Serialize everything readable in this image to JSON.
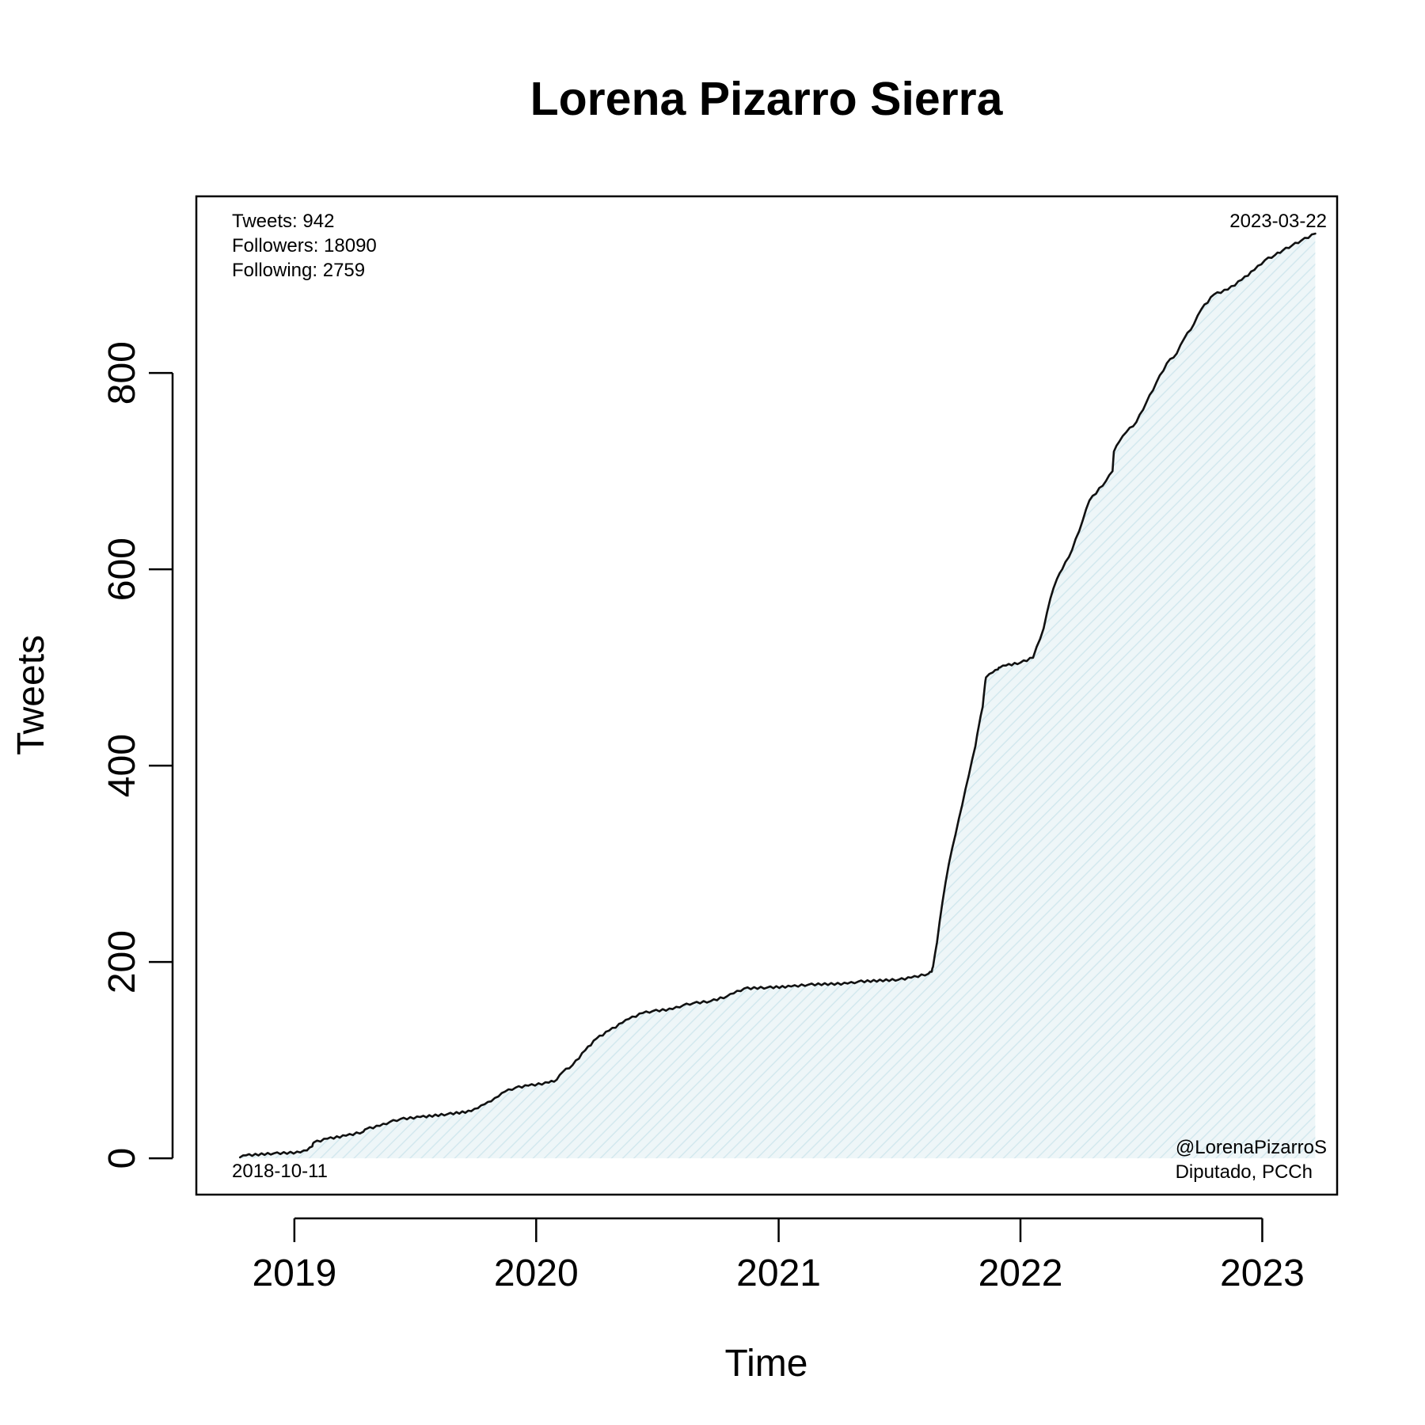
{
  "chart_data": {
    "type": "area",
    "title": "Lorena Pizarro Sierra",
    "xlabel": "Time",
    "ylabel": "Tweets",
    "x_ticks": [
      "2019",
      "2020",
      "2021",
      "2022",
      "2023"
    ],
    "y_ticks": [
      "0",
      "200",
      "400",
      "600",
      "800"
    ],
    "xlim": [
      "2018-08-06",
      "2023-04-24"
    ],
    "ylim": [
      -37,
      980
    ],
    "grid": false,
    "legend": "none",
    "line_color": "#111111",
    "fill_color": "#dfeef2",
    "stats": {
      "tweets": "Tweets: 942",
      "followers": "Followers: 18090",
      "following": "Following: 2759"
    },
    "start_label": "2018-10-11",
    "end_label": "2023-03-22",
    "handle": "@LorenaPizarroS",
    "role": "Diputado, PCCh",
    "series": [
      {
        "x": [
          "2018-10-11",
          "2018-10-20",
          "2018-12-01",
          "2019-01-10",
          "2019-01-20",
          "2019-01-28",
          "2019-01-30",
          "2019-02-20",
          "2019-03-20",
          "2019-04-15",
          "2019-04-20",
          "2019-05-10",
          "2019-05-25",
          "2019-06-10",
          "2019-07-10",
          "2019-08-20",
          "2019-09-25",
          "2019-10-05",
          "2019-10-15",
          "2019-10-25",
          "2019-11-05",
          "2019-11-15",
          "2019-12-01",
          "2019-12-20",
          "2020-01-20",
          "2020-02-01",
          "2020-02-10",
          "2020-02-25",
          "2020-03-15",
          "2020-04-01",
          "2020-04-20",
          "2020-05-10",
          "2020-05-20",
          "2020-06-10",
          "2020-06-25",
          "2020-07-25",
          "2020-08-10",
          "2020-08-25",
          "2020-09-20",
          "2020-10-15",
          "2020-10-25",
          "2020-11-10",
          "2020-12-15",
          "2021-01-20",
          "2021-02-15",
          "2021-04-15",
          "2021-05-01",
          "2021-07-01",
          "2021-07-20",
          "2021-08-15",
          "2021-08-20",
          "2021-08-22",
          "2021-08-28",
          "2021-09-05",
          "2021-09-15",
          "2021-09-25",
          "2021-10-05",
          "2021-10-15",
          "2021-10-25",
          "2021-10-30",
          "2021-11-05",
          "2021-11-08",
          "2021-11-10",
          "2021-11-20",
          "2021-11-28",
          "2021-12-01",
          "2021-12-10",
          "2022-01-01",
          "2022-01-20",
          "2022-02-05",
          "2022-02-15",
          "2022-02-25",
          "2022-03-05",
          "2022-03-20",
          "2022-04-05",
          "2022-04-15",
          "2022-05-10",
          "2022-05-20",
          "2022-05-22",
          "2022-05-30",
          "2022-06-10",
          "2022-06-25",
          "2022-07-10",
          "2022-07-25",
          "2022-08-10",
          "2022-08-25",
          "2022-09-05",
          "2022-09-20",
          "2022-10-01",
          "2022-10-20",
          "2022-11-10",
          "2022-12-01",
          "2022-12-20",
          "2023-01-05",
          "2023-01-20",
          "2023-02-01",
          "2023-02-15",
          "2023-03-01",
          "2023-03-22"
        ],
        "y": [
          1,
          3,
          5,
          6,
          8,
          12,
          16,
          20,
          23,
          27,
          30,
          33,
          37,
          40,
          42,
          45,
          48,
          51,
          55,
          58,
          63,
          68,
          72,
          74,
          77,
          80,
          88,
          95,
          110,
          122,
          130,
          138,
          142,
          148,
          150,
          152,
          156,
          158,
          160,
          165,
          168,
          173,
          174,
          175,
          177,
          178,
          180,
          182,
          184,
          188,
          190,
          195,
          220,
          260,
          300,
          330,
          360,
          390,
          420,
          440,
          460,
          480,
          490,
          495,
          498,
          500,
          502,
          505,
          510,
          540,
          570,
          590,
          600,
          620,
          650,
          670,
          690,
          700,
          720,
          730,
          740,
          750,
          770,
          790,
          810,
          820,
          835,
          850,
          865,
          880,
          885,
          895,
          905,
          915,
          920,
          925,
          930,
          935,
          942
        ]
      }
    ]
  }
}
